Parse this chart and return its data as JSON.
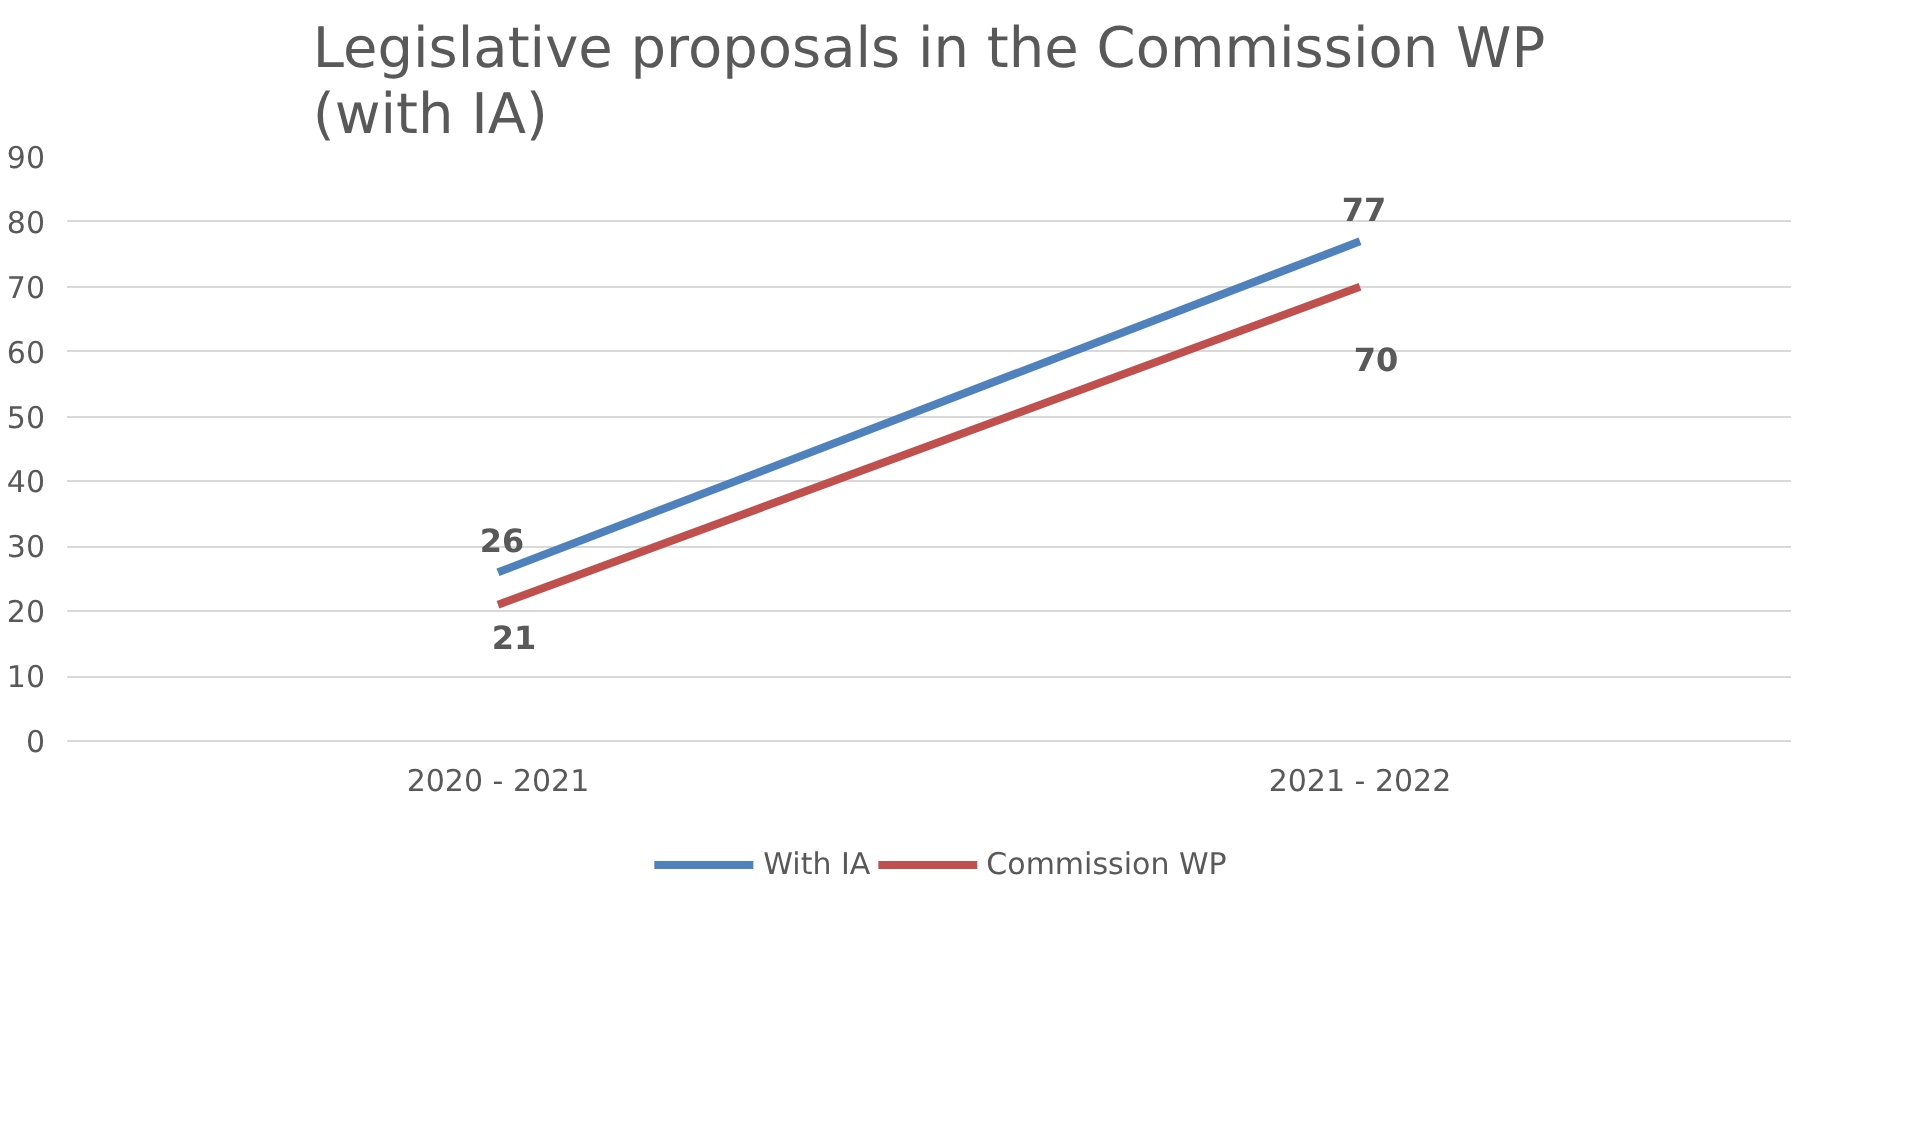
{
  "chart_data": {
    "type": "line",
    "title": "Legislative proposals in the Commission WP (with IA)",
    "categories": [
      "2020 - 2021",
      "2021 - 2022"
    ],
    "series": [
      {
        "name": "With IA",
        "color": "#4f81bd",
        "values": [
          26,
          77
        ]
      },
      {
        "name": "Commission WP",
        "color": "#c0504d",
        "values": [
          21,
          70
        ]
      }
    ],
    "ylim": [
      0,
      90
    ],
    "yticks": [
      0,
      10,
      20,
      30,
      40,
      50,
      60,
      70,
      80,
      90
    ],
    "grid": "y",
    "legend": "bottom",
    "data_labels": true,
    "marker": "none",
    "line_style": "solid"
  }
}
